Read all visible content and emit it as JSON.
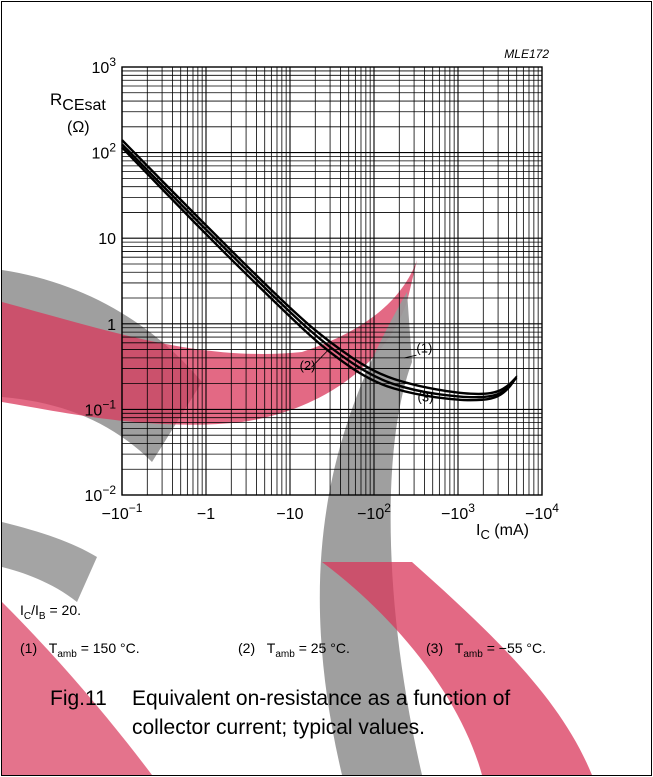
{
  "chart_data": {
    "type": "line",
    "title": "",
    "code": "MLE172",
    "xscale": "log",
    "yscale": "log",
    "xlim": [
      0.1,
      10000
    ],
    "ylim": [
      0.01,
      1000
    ],
    "xlabel": {
      "main": "I",
      "sub": "C",
      "unit": " (mA)"
    },
    "ylabel": {
      "main": "R",
      "sub": "CEsat",
      "unit": "(Ω)"
    },
    "xticks": [
      {
        "value": 0.1,
        "base": "−10",
        "exp": "−1"
      },
      {
        "value": 1,
        "base": "−1",
        "exp": ""
      },
      {
        "value": 10,
        "base": "−10",
        "exp": ""
      },
      {
        "value": 100,
        "base": "−10",
        "exp": "2"
      },
      {
        "value": 1000,
        "base": "−10",
        "exp": "3"
      },
      {
        "value": 10000,
        "base": "−10",
        "exp": "4"
      }
    ],
    "yticks": [
      {
        "value": 0.01,
        "base": "10",
        "exp": "−2"
      },
      {
        "value": 0.1,
        "base": "10",
        "exp": "−1"
      },
      {
        "value": 1,
        "base": "1",
        "exp": ""
      },
      {
        "value": 10,
        "base": "10",
        "exp": ""
      },
      {
        "value": 100,
        "base": "10",
        "exp": "2"
      },
      {
        "value": 1000,
        "base": "10",
        "exp": "3"
      }
    ],
    "grid": true,
    "series": [
      {
        "label": "(1)",
        "x": [
          0.1,
          1,
          10,
          30,
          100,
          300,
          1000,
          2000,
          3000,
          4000,
          5000
        ],
        "y": [
          140,
          14,
          1.5,
          0.6,
          0.27,
          0.19,
          0.155,
          0.15,
          0.16,
          0.19,
          0.24
        ]
      },
      {
        "label": "(2)",
        "x": [
          0.1,
          1,
          10,
          30,
          100,
          300,
          1000,
          2000,
          3000,
          4000,
          5000
        ],
        "y": [
          125,
          12.5,
          1.35,
          0.52,
          0.235,
          0.165,
          0.14,
          0.138,
          0.148,
          0.18,
          0.24
        ]
      },
      {
        "label": "(3)",
        "x": [
          0.1,
          1,
          10,
          30,
          100,
          300,
          1000,
          2000,
          3000,
          4000,
          5000
        ],
        "y": [
          115,
          11,
          1.2,
          0.45,
          0.205,
          0.15,
          0.128,
          0.128,
          0.14,
          0.175,
          0.24
        ]
      }
    ]
  },
  "notes": {
    "ratio": {
      "a": "I",
      "a_sub": "C",
      "sep": "/I",
      "b_sub": "B",
      "rest": " = 20."
    },
    "conditions": [
      {
        "num": "(1)",
        "t": "T",
        "t_sub": "amb",
        "rest": " = 150 °C."
      },
      {
        "num": "(2)",
        "t": "T",
        "t_sub": "amb",
        "rest": " = 25 °C."
      },
      {
        "num": "(3)",
        "t": "T",
        "t_sub": "amb",
        "rest": " = −55 °C."
      }
    ]
  },
  "caption": {
    "figure": "Fig.11",
    "line1": "Equivalent on-resistance as a function of",
    "line2": "collector current; typical values."
  },
  "colors": {
    "line": "#000000",
    "watermark_red": "#d9375b",
    "watermark_gray": "#9a9a9a"
  }
}
